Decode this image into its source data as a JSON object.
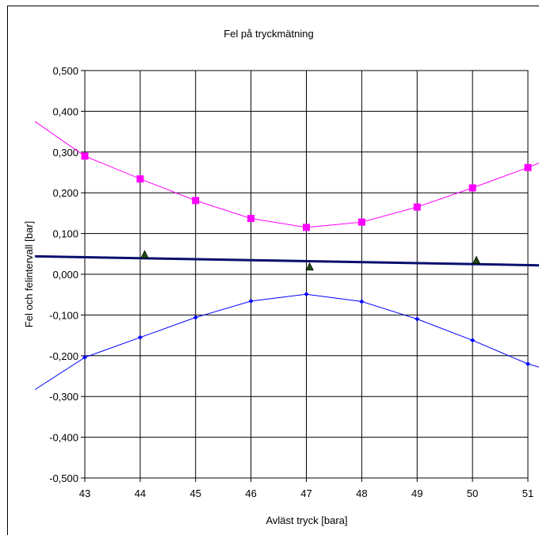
{
  "chart_data": {
    "type": "line",
    "title": "Fel på tryckmätning",
    "xlabel": "Avläst tryck [bara]",
    "ylabel": "Fel och felintervall [bar]",
    "xlim": [
      43,
      51
    ],
    "ylim": [
      -0.5,
      0.5
    ],
    "x_ticks": [
      43,
      44,
      45,
      46,
      47,
      48,
      49,
      50,
      51
    ],
    "x_tick_labels": [
      "43",
      "44",
      "45",
      "46",
      "47",
      "48",
      "49",
      "50",
      "51"
    ],
    "y_ticks": [
      0.5,
      0.4,
      0.3,
      0.2,
      0.1,
      0.0,
      -0.1,
      -0.2,
      -0.3,
      -0.4,
      -0.5
    ],
    "y_tick_labels": [
      "0,500",
      "0,400",
      "0,300",
      "0,200",
      "0,100",
      "0,000",
      "-0,100",
      "-0,200",
      "-0,300",
      "-0,400",
      "-0,500"
    ],
    "grid": true,
    "series": [
      {
        "color": "#ff00ff",
        "marker": "square",
        "x": [
          43,
          44,
          45,
          46,
          47,
          48,
          49,
          50,
          51
        ],
        "y": [
          0.29,
          0.234,
          0.181,
          0.137,
          0.115,
          0.128,
          0.165,
          0.212,
          0.262
        ],
        "extended_line": {
          "x": [
            42.1,
            51.2
          ],
          "y": [
            0.375,
            0.273
          ]
        }
      },
      {
        "color": "#0000ff",
        "marker": "small-diamond",
        "x": [
          43,
          44,
          45,
          46,
          47,
          48,
          49,
          50,
          51
        ],
        "y": [
          -0.204,
          -0.155,
          -0.106,
          -0.066,
          -0.049,
          -0.067,
          -0.11,
          -0.162,
          -0.22
        ],
        "extended_line": {
          "x": [
            42.1,
            51.2
          ],
          "y": [
            -0.283,
            -0.228
          ]
        }
      },
      {
        "color": "#0a0f6e",
        "marker": "none",
        "line_width": "thick",
        "x": [
          42.1,
          51.2
        ],
        "y": [
          0.044,
          0.022
        ]
      },
      {
        "color": "#1e4d12",
        "marker": "triangle",
        "line": false,
        "x": [
          44.08,
          47.06,
          50.07
        ],
        "y": [
          0.047,
          0.017,
          0.033
        ]
      }
    ]
  }
}
